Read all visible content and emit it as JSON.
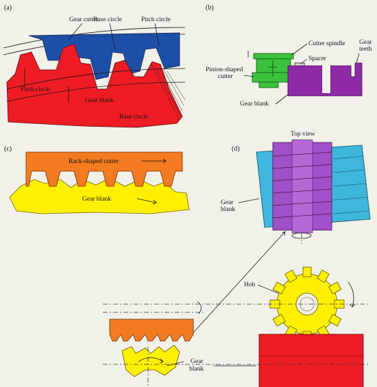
{
  "panel_a": {
    "tag": "(a)",
    "gear_cutter": "Gear cutter",
    "base_circle_top": "Base circle",
    "pitch_circle_top": "Pitch circle",
    "pitch_circle_left": "Pitch circle",
    "gear_blank": "Gear blank",
    "base_circle_bottom": "Base circle"
  },
  "panel_b": {
    "tag": "(b)",
    "cutter_spindle": "Cutter spindle",
    "gear_teeth_1": "Gear",
    "gear_teeth_2": "teeth",
    "pinion_1": "Pinion-shaped",
    "pinion_2": "cutter",
    "spacer": "Spacer",
    "gear_blank": "Gear blank"
  },
  "panel_c": {
    "tag": "(c)",
    "rack_cutter": "Rack-shaped cutter",
    "gear_blank": "Gear blank"
  },
  "panel_d": {
    "tag": "(d)",
    "top_view": "Top view",
    "gear_blank_1": "Gear",
    "gear_blank_2": "blank",
    "hob": "Hob",
    "gear_blank_bottom_1": "Gear",
    "gear_blank_bottom_2": "blank"
  },
  "colors": {
    "cutter_blue": "#1e4fa8",
    "blank_red": "#ee1c24",
    "spindle_green": "#3cc23c",
    "blank_purple": "#8e2aa8",
    "rack_orange": "#f47b20",
    "blank_yellow": "#ffef00",
    "hob_cyan": "#3fb6dc",
    "hob_purple": "#a050c8"
  }
}
